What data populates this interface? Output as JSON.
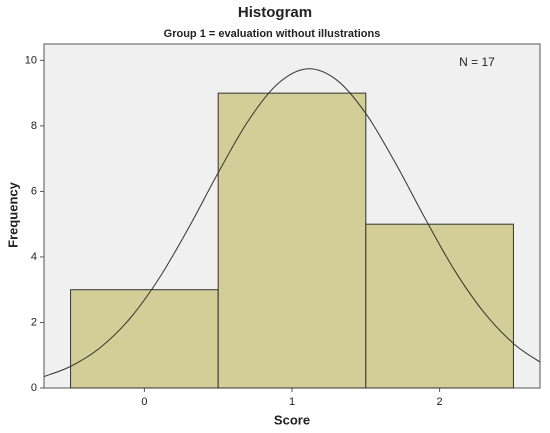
{
  "chart_data": {
    "type": "histogram",
    "title": "Histogram",
    "subtitle": "Group 1 = evaluation without illustrations",
    "x_label": "Score",
    "y_label": "Frequency",
    "annotation": "N = 17",
    "bins": [
      -0.5,
      0.5,
      1.5,
      2.5
    ],
    "values": [
      3,
      9,
      5
    ],
    "color": "#d3ce97",
    "xlim": [
      -0.68,
      2.68
    ],
    "xticks": [
      0,
      1,
      2
    ],
    "ylim": [
      0,
      10.5
    ],
    "yticks": [
      0,
      2,
      4,
      6,
      8,
      10
    ],
    "curve": {
      "x": [
        -0.68,
        -0.5,
        -0.3,
        -0.1,
        0.1,
        0.3,
        0.5,
        0.7,
        0.9,
        1.1,
        1.3,
        1.5,
        1.7,
        1.9,
        2.1,
        2.3,
        2.5,
        2.68
      ],
      "y": [
        0.35,
        0.66,
        1.23,
        2.11,
        3.35,
        4.89,
        6.57,
        8.13,
        9.27,
        9.74,
        9.41,
        8.38,
        6.87,
        5.19,
        3.6,
        2.31,
        1.36,
        0.79
      ]
    }
  }
}
